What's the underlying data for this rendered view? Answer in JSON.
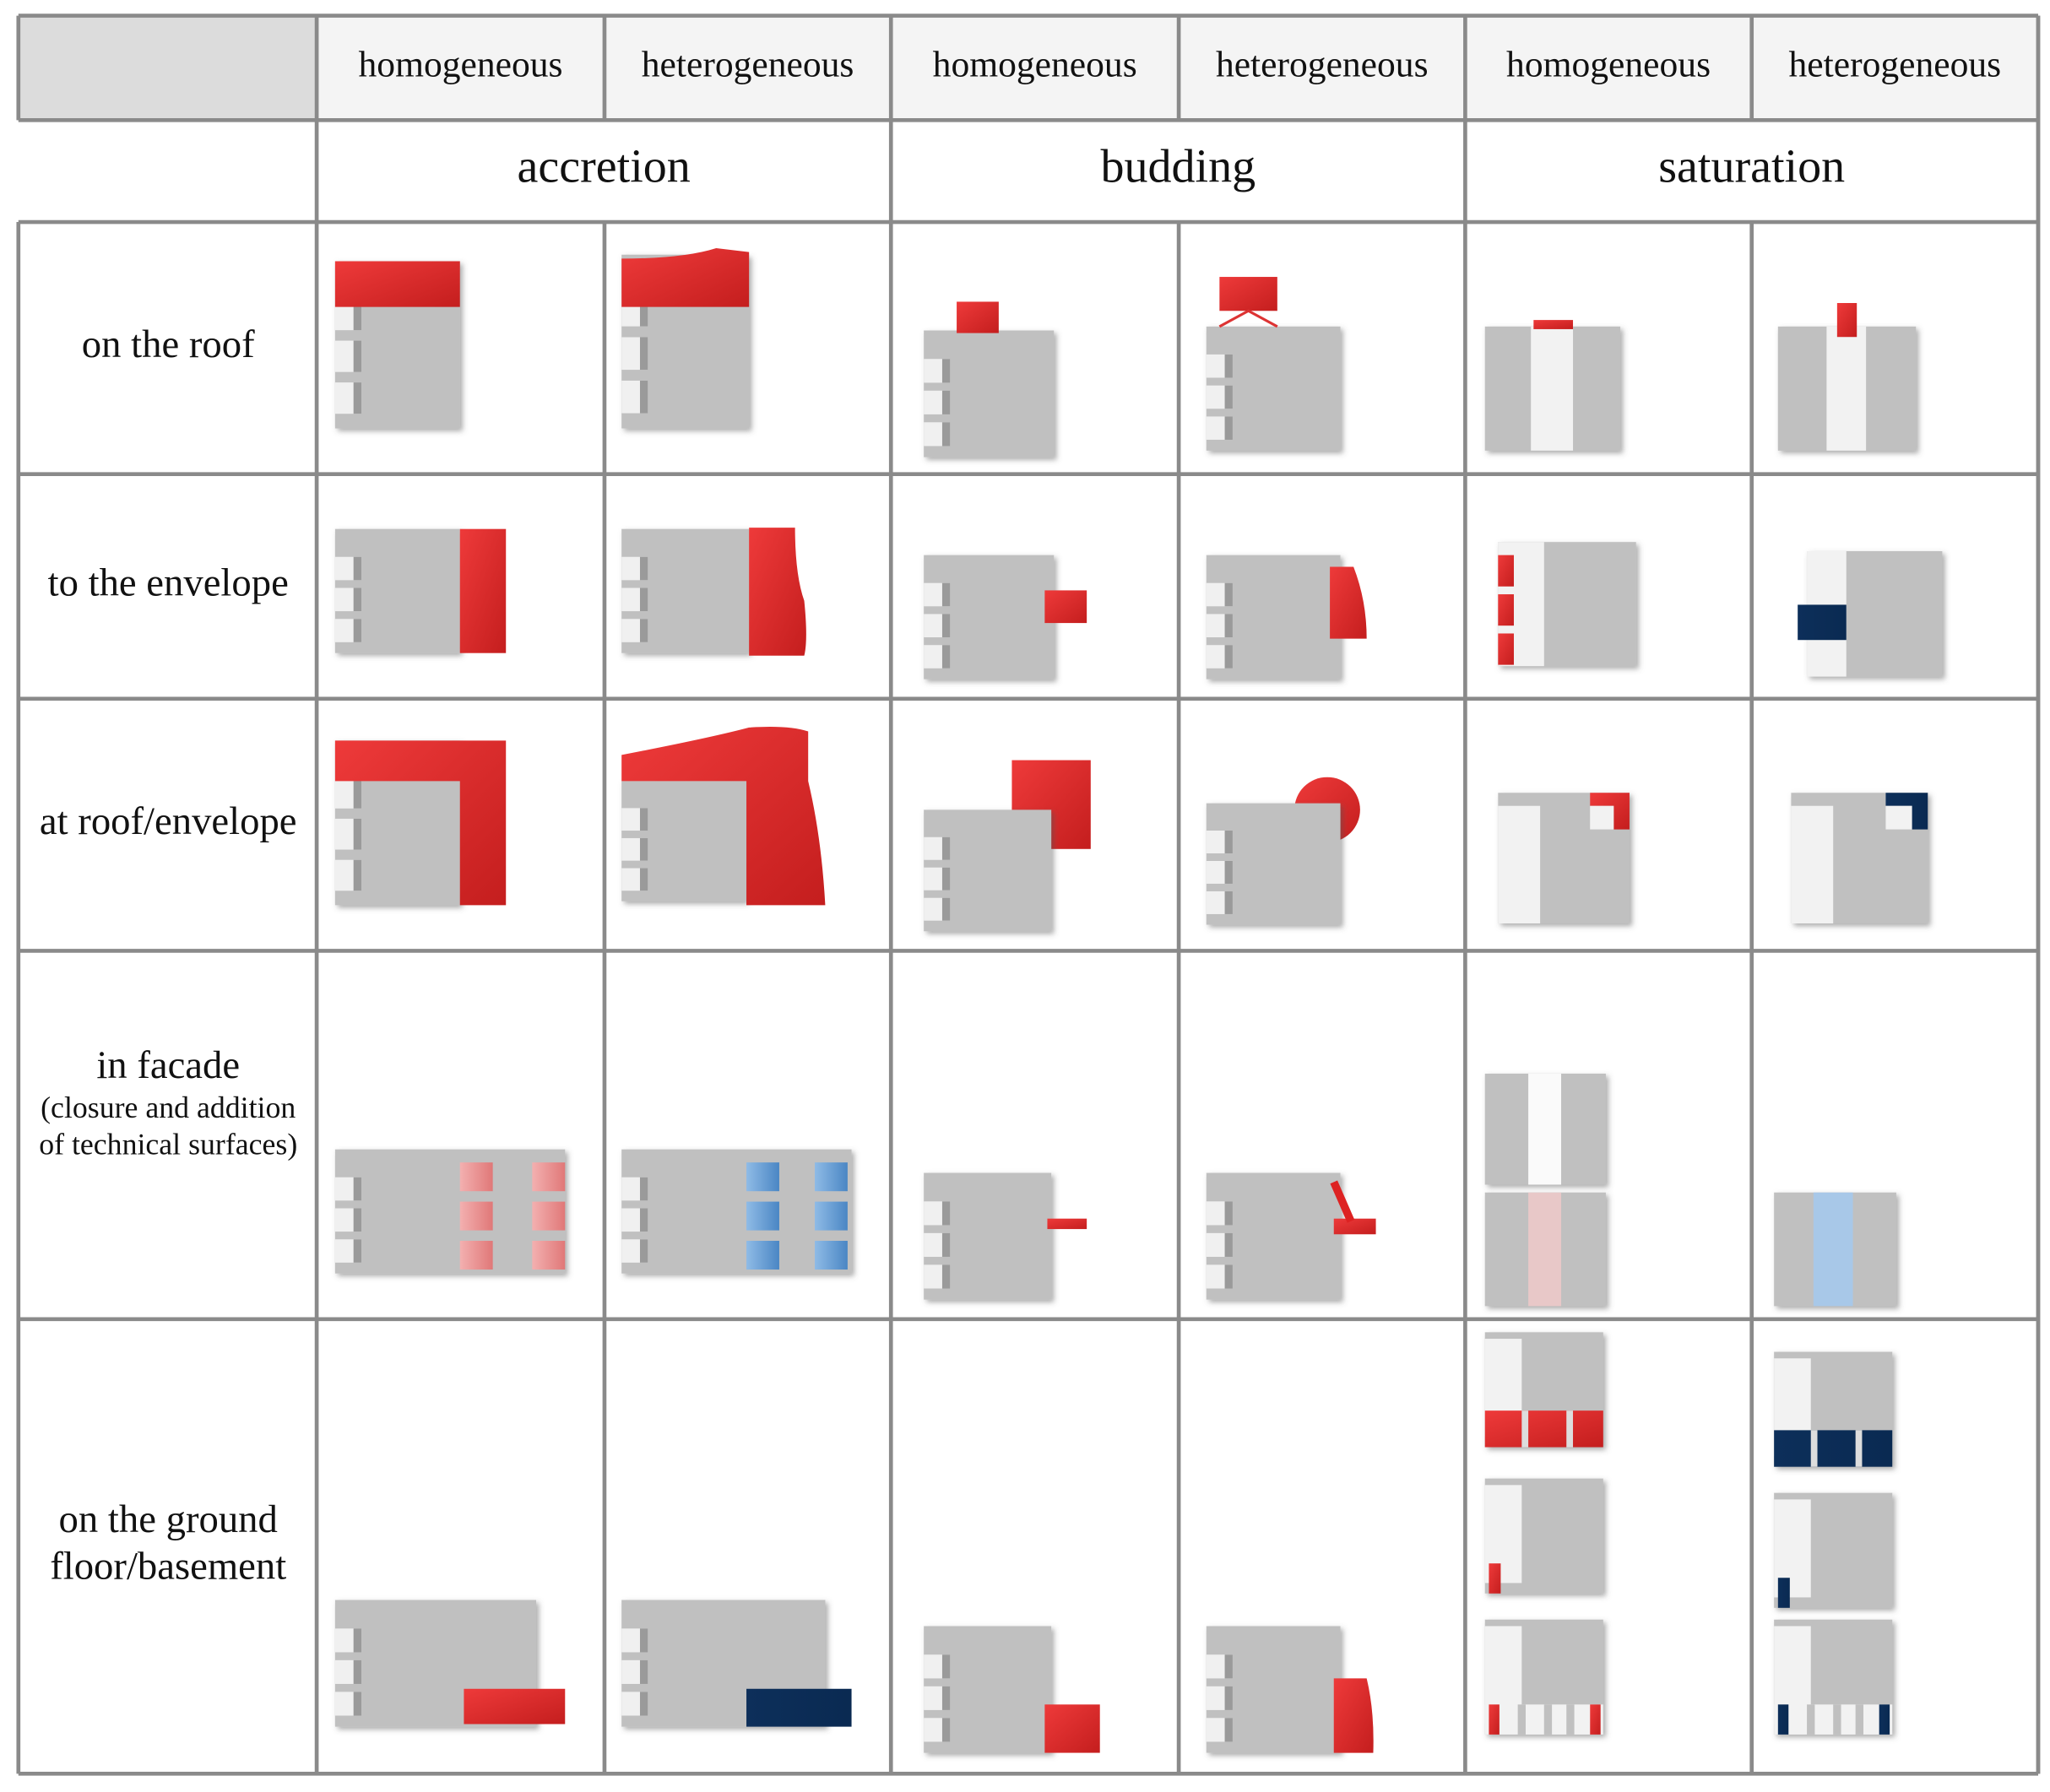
{
  "header": {
    "subheaders": [
      "homogeneous",
      "heterogeneous",
      "homogeneous",
      "heterogeneous",
      "homogeneous",
      "heterogeneous"
    ],
    "groups": [
      "accretion",
      "budding",
      "saturation"
    ]
  },
  "rows": [
    {
      "label": [
        "on the roof"
      ]
    },
    {
      "label": [
        "to the envelope"
      ]
    },
    {
      "label": [
        "at roof/envelope"
      ]
    },
    {
      "label": [
        "in facade"
      ],
      "note": [
        "(closure and addition",
        "of technical surfaces)"
      ]
    },
    {
      "label": [
        "on the ground",
        "floor/basement"
      ]
    }
  ]
}
